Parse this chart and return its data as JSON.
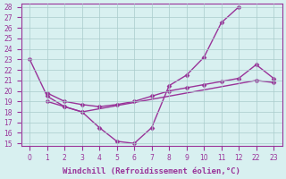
{
  "xlabel": "Windchill (Refroidissement éolien,°C)",
  "line_color": "#993399",
  "bg_color": "#d8f0f0",
  "grid_color": "#aacccc",
  "line1_x": [
    0,
    1,
    2,
    3,
    4,
    5,
    6,
    7,
    8,
    9,
    10,
    11,
    12
  ],
  "line1_y": [
    23,
    19.5,
    18.5,
    18.0,
    16.5,
    15.2,
    15.0,
    16.5,
    20.5,
    21.5,
    23.2,
    26.5,
    28.0
  ],
  "line2_x": [
    1,
    2,
    3,
    4,
    5,
    6,
    7,
    8,
    9,
    10,
    11,
    12,
    22,
    23
  ],
  "line2_y": [
    19.8,
    19.0,
    18.7,
    18.5,
    18.7,
    19.0,
    19.5,
    20.0,
    20.3,
    20.6,
    20.9,
    21.2,
    22.5,
    21.2
  ],
  "line3_x": [
    1,
    2,
    3,
    22,
    23
  ],
  "line3_y": [
    19.0,
    18.5,
    18.0,
    21.0,
    20.8
  ],
  "xlim_left": -0.3,
  "xlim_right": 23.5,
  "ylim_bottom": 14.8,
  "ylim_top": 28.3,
  "yticks": [
    15,
    16,
    17,
    18,
    19,
    20,
    21,
    22,
    23,
    24,
    25,
    26,
    27,
    28
  ],
  "xtick_positions": [
    0,
    1,
    2,
    3,
    4,
    5,
    6,
    7,
    8,
    9,
    10,
    11,
    12,
    22,
    23
  ],
  "xtick_labels": [
    "0",
    "1",
    "2",
    "3",
    "4",
    "5",
    "6",
    "7",
    "8",
    "9",
    "10",
    "11",
    "12",
    "22",
    "23"
  ],
  "marker": "D",
  "markersize": 2.5,
  "linewidth": 1.0,
  "tick_fontsize": 5.5,
  "xlabel_fontsize": 6.5
}
